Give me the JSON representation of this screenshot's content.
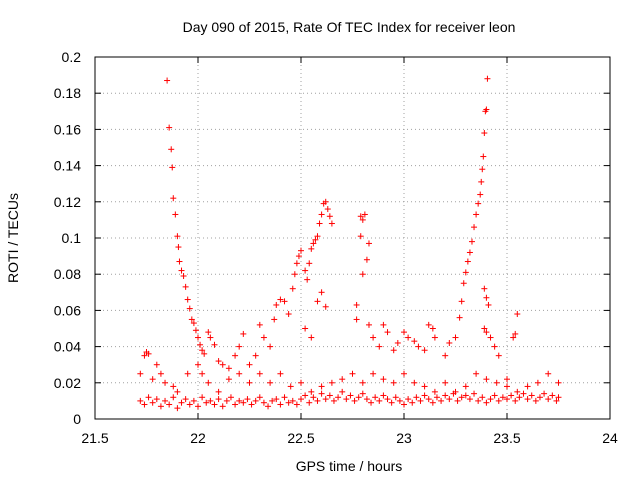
{
  "chart_data": {
    "type": "scatter",
    "title": "Day 090 of 2015, Rate Of TEC Index for receiver leon",
    "xlabel": "GPS time / hours",
    "ylabel": "ROTI / TECUs",
    "xlim": [
      21.5,
      24
    ],
    "ylim": [
      0,
      0.2
    ],
    "xticks": [
      21.5,
      22,
      22.5,
      23,
      23.5,
      24
    ],
    "xtick_labels": [
      "21.5",
      "22",
      "22.5",
      "23",
      "23.5",
      "24"
    ],
    "yticks": [
      0,
      0.02,
      0.04,
      0.06,
      0.08,
      0.1,
      0.12,
      0.14,
      0.16,
      0.18,
      0.2
    ],
    "ytick_labels": [
      "0",
      "0.02",
      "0.04",
      "0.06",
      "0.08",
      "0.1",
      "0.12",
      "0.14",
      "0.16",
      "0.18",
      "0.2"
    ],
    "grid": true,
    "marker": "+",
    "color": "#ff0000",
    "series": [
      {
        "name": "ROTI",
        "points": [
          [
            21.85,
            0.187
          ],
          [
            21.86,
            0.161
          ],
          [
            21.87,
            0.149
          ],
          [
            21.875,
            0.139
          ],
          [
            21.88,
            0.122
          ],
          [
            21.89,
            0.113
          ],
          [
            21.9,
            0.101
          ],
          [
            21.905,
            0.095
          ],
          [
            21.91,
            0.087
          ],
          [
            21.92,
            0.082
          ],
          [
            21.93,
            0.079
          ],
          [
            21.94,
            0.073
          ],
          [
            21.95,
            0.066
          ],
          [
            21.96,
            0.061
          ],
          [
            21.97,
            0.055
          ],
          [
            21.98,
            0.053
          ],
          [
            21.99,
            0.049
          ],
          [
            22.0,
            0.045
          ],
          [
            22.01,
            0.041
          ],
          [
            22.02,
            0.038
          ],
          [
            22.03,
            0.036
          ],
          [
            22.05,
            0.048
          ],
          [
            22.06,
            0.045
          ],
          [
            22.08,
            0.041
          ],
          [
            22.1,
            0.032
          ],
          [
            22.12,
            0.03
          ],
          [
            22.15,
            0.028
          ],
          [
            22.18,
            0.035
          ],
          [
            22.2,
            0.04
          ],
          [
            22.22,
            0.047
          ],
          [
            22.25,
            0.03
          ],
          [
            22.28,
            0.035
          ],
          [
            22.3,
            0.052
          ],
          [
            22.32,
            0.045
          ],
          [
            22.35,
            0.04
          ],
          [
            22.37,
            0.055
          ],
          [
            22.38,
            0.063
          ],
          [
            22.4,
            0.066
          ],
          [
            22.42,
            0.065
          ],
          [
            22.44,
            0.058
          ],
          [
            22.46,
            0.072
          ],
          [
            22.47,
            0.08
          ],
          [
            22.48,
            0.086
          ],
          [
            22.49,
            0.09
          ],
          [
            22.5,
            0.093
          ],
          [
            22.52,
            0.082
          ],
          [
            22.53,
            0.077
          ],
          [
            22.54,
            0.086
          ],
          [
            22.55,
            0.094
          ],
          [
            22.56,
            0.097
          ],
          [
            22.57,
            0.099
          ],
          [
            22.58,
            0.101
          ],
          [
            22.59,
            0.108
          ],
          [
            22.6,
            0.113
          ],
          [
            22.61,
            0.119
          ],
          [
            22.62,
            0.12
          ],
          [
            22.63,
            0.116
          ],
          [
            22.64,
            0.112
          ],
          [
            22.65,
            0.108
          ],
          [
            22.62,
            0.062
          ],
          [
            22.6,
            0.07
          ],
          [
            22.58,
            0.065
          ],
          [
            22.55,
            0.045
          ],
          [
            22.52,
            0.05
          ],
          [
            22.79,
            0.112
          ],
          [
            22.8,
            0.11
          ],
          [
            22.81,
            0.113
          ],
          [
            22.79,
            0.101
          ],
          [
            22.83,
            0.097
          ],
          [
            22.82,
            0.088
          ],
          [
            22.8,
            0.08
          ],
          [
            22.77,
            0.055
          ],
          [
            22.77,
            0.063
          ],
          [
            22.83,
            0.052
          ],
          [
            22.85,
            0.045
          ],
          [
            22.88,
            0.04
          ],
          [
            22.9,
            0.052
          ],
          [
            22.92,
            0.048
          ],
          [
            22.95,
            0.038
          ],
          [
            22.97,
            0.042
          ],
          [
            23.0,
            0.048
          ],
          [
            23.02,
            0.045
          ],
          [
            23.05,
            0.043
          ],
          [
            23.07,
            0.04
          ],
          [
            23.1,
            0.038
          ],
          [
            23.12,
            0.052
          ],
          [
            23.14,
            0.05
          ],
          [
            23.15,
            0.045
          ],
          [
            23.2,
            0.035
          ],
          [
            23.22,
            0.042
          ],
          [
            23.25,
            0.045
          ],
          [
            23.27,
            0.056
          ],
          [
            23.28,
            0.065
          ],
          [
            23.29,
            0.075
          ],
          [
            23.3,
            0.081
          ],
          [
            23.31,
            0.087
          ],
          [
            23.32,
            0.092
          ],
          [
            23.33,
            0.098
          ],
          [
            23.34,
            0.106
          ],
          [
            23.35,
            0.113
          ],
          [
            23.36,
            0.119
          ],
          [
            23.37,
            0.124
          ],
          [
            23.375,
            0.131
          ],
          [
            23.38,
            0.138
          ],
          [
            23.385,
            0.145
          ],
          [
            23.39,
            0.158
          ],
          [
            23.395,
            0.17
          ],
          [
            23.4,
            0.171
          ],
          [
            23.405,
            0.188
          ],
          [
            23.39,
            0.072
          ],
          [
            23.4,
            0.067
          ],
          [
            23.41,
            0.063
          ],
          [
            23.39,
            0.05
          ],
          [
            23.4,
            0.048
          ],
          [
            23.42,
            0.045
          ],
          [
            23.44,
            0.04
          ],
          [
            23.46,
            0.035
          ],
          [
            23.5,
            0.022
          ],
          [
            23.53,
            0.045
          ],
          [
            23.54,
            0.047
          ],
          [
            23.55,
            0.058
          ],
          [
            21.72,
            0.025
          ],
          [
            21.74,
            0.035
          ],
          [
            21.75,
            0.037
          ],
          [
            21.76,
            0.036
          ],
          [
            21.78,
            0.022
          ],
          [
            21.8,
            0.03
          ],
          [
            21.82,
            0.025
          ],
          [
            21.84,
            0.02
          ],
          [
            21.88,
            0.018
          ],
          [
            21.9,
            0.015
          ],
          [
            21.95,
            0.025
          ],
          [
            22.0,
            0.03
          ],
          [
            22.02,
            0.025
          ],
          [
            22.05,
            0.02
          ],
          [
            22.1,
            0.015
          ],
          [
            22.15,
            0.022
          ],
          [
            22.2,
            0.025
          ],
          [
            22.25,
            0.02
          ],
          [
            22.3,
            0.025
          ],
          [
            22.35,
            0.02
          ],
          [
            22.4,
            0.025
          ],
          [
            22.45,
            0.018
          ],
          [
            22.5,
            0.02
          ],
          [
            22.55,
            0.015
          ],
          [
            22.6,
            0.018
          ],
          [
            22.65,
            0.02
          ],
          [
            22.7,
            0.022
          ],
          [
            22.75,
            0.025
          ],
          [
            22.8,
            0.02
          ],
          [
            22.85,
            0.025
          ],
          [
            22.9,
            0.022
          ],
          [
            22.95,
            0.02
          ],
          [
            23.0,
            0.025
          ],
          [
            23.05,
            0.02
          ],
          [
            23.1,
            0.018
          ],
          [
            23.15,
            0.015
          ],
          [
            23.2,
            0.02
          ],
          [
            23.25,
            0.015
          ],
          [
            23.3,
            0.018
          ],
          [
            23.35,
            0.025
          ],
          [
            23.4,
            0.022
          ],
          [
            23.45,
            0.02
          ],
          [
            23.5,
            0.018
          ],
          [
            23.55,
            0.015
          ],
          [
            23.6,
            0.018
          ],
          [
            23.65,
            0.02
          ],
          [
            23.7,
            0.025
          ],
          [
            23.75,
            0.02
          ],
          [
            21.72,
            0.01
          ],
          [
            21.74,
            0.008
          ],
          [
            21.76,
            0.012
          ],
          [
            21.78,
            0.009
          ],
          [
            21.8,
            0.011
          ],
          [
            21.82,
            0.007
          ],
          [
            21.84,
            0.01
          ],
          [
            21.86,
            0.008
          ],
          [
            21.88,
            0.012
          ],
          [
            21.9,
            0.006
          ],
          [
            21.92,
            0.009
          ],
          [
            21.94,
            0.011
          ],
          [
            21.96,
            0.008
          ],
          [
            21.98,
            0.01
          ],
          [
            22.0,
            0.007
          ],
          [
            22.02,
            0.012
          ],
          [
            22.04,
            0.009
          ],
          [
            22.06,
            0.01
          ],
          [
            22.08,
            0.008
          ],
          [
            22.1,
            0.011
          ],
          [
            22.12,
            0.007
          ],
          [
            22.14,
            0.01
          ],
          [
            22.16,
            0.012
          ],
          [
            22.18,
            0.008
          ],
          [
            22.2,
            0.01
          ],
          [
            22.22,
            0.009
          ],
          [
            22.24,
            0.011
          ],
          [
            22.26,
            0.008
          ],
          [
            22.28,
            0.01
          ],
          [
            22.3,
            0.012
          ],
          [
            22.32,
            0.009
          ],
          [
            22.34,
            0.007
          ],
          [
            22.36,
            0.01
          ],
          [
            22.38,
            0.011
          ],
          [
            22.4,
            0.008
          ],
          [
            22.42,
            0.012
          ],
          [
            22.44,
            0.009
          ],
          [
            22.46,
            0.01
          ],
          [
            22.48,
            0.008
          ],
          [
            22.5,
            0.011
          ],
          [
            22.52,
            0.013
          ],
          [
            22.54,
            0.009
          ],
          [
            22.56,
            0.012
          ],
          [
            22.58,
            0.01
          ],
          [
            22.6,
            0.014
          ],
          [
            22.62,
            0.011
          ],
          [
            22.64,
            0.013
          ],
          [
            22.66,
            0.01
          ],
          [
            22.68,
            0.012
          ],
          [
            22.7,
            0.015
          ],
          [
            22.72,
            0.011
          ],
          [
            22.74,
            0.013
          ],
          [
            22.76,
            0.01
          ],
          [
            22.78,
            0.012
          ],
          [
            22.8,
            0.014
          ],
          [
            22.82,
            0.011
          ],
          [
            22.84,
            0.009
          ],
          [
            22.86,
            0.012
          ],
          [
            22.88,
            0.01
          ],
          [
            22.9,
            0.013
          ],
          [
            22.92,
            0.011
          ],
          [
            22.94,
            0.009
          ],
          [
            22.96,
            0.012
          ],
          [
            22.98,
            0.01
          ],
          [
            23.0,
            0.008
          ],
          [
            23.02,
            0.011
          ],
          [
            23.04,
            0.009
          ],
          [
            23.06,
            0.012
          ],
          [
            23.08,
            0.01
          ],
          [
            23.1,
            0.013
          ],
          [
            23.12,
            0.011
          ],
          [
            23.14,
            0.009
          ],
          [
            23.16,
            0.012
          ],
          [
            23.18,
            0.01
          ],
          [
            23.2,
            0.013
          ],
          [
            23.22,
            0.011
          ],
          [
            23.24,
            0.014
          ],
          [
            23.26,
            0.01
          ],
          [
            23.28,
            0.012
          ],
          [
            23.3,
            0.013
          ],
          [
            23.32,
            0.011
          ],
          [
            23.34,
            0.014
          ],
          [
            23.36,
            0.01
          ],
          [
            23.38,
            0.012
          ],
          [
            23.4,
            0.009
          ],
          [
            23.42,
            0.011
          ],
          [
            23.44,
            0.013
          ],
          [
            23.46,
            0.01
          ],
          [
            23.48,
            0.012
          ],
          [
            23.5,
            0.011
          ],
          [
            23.52,
            0.013
          ],
          [
            23.54,
            0.01
          ],
          [
            23.56,
            0.012
          ],
          [
            23.58,
            0.014
          ],
          [
            23.6,
            0.011
          ],
          [
            23.62,
            0.013
          ],
          [
            23.64,
            0.01
          ],
          [
            23.66,
            0.012
          ],
          [
            23.68,
            0.014
          ],
          [
            23.7,
            0.011
          ],
          [
            23.72,
            0.013
          ],
          [
            23.74,
            0.01
          ],
          [
            23.75,
            0.012
          ]
        ]
      }
    ]
  }
}
